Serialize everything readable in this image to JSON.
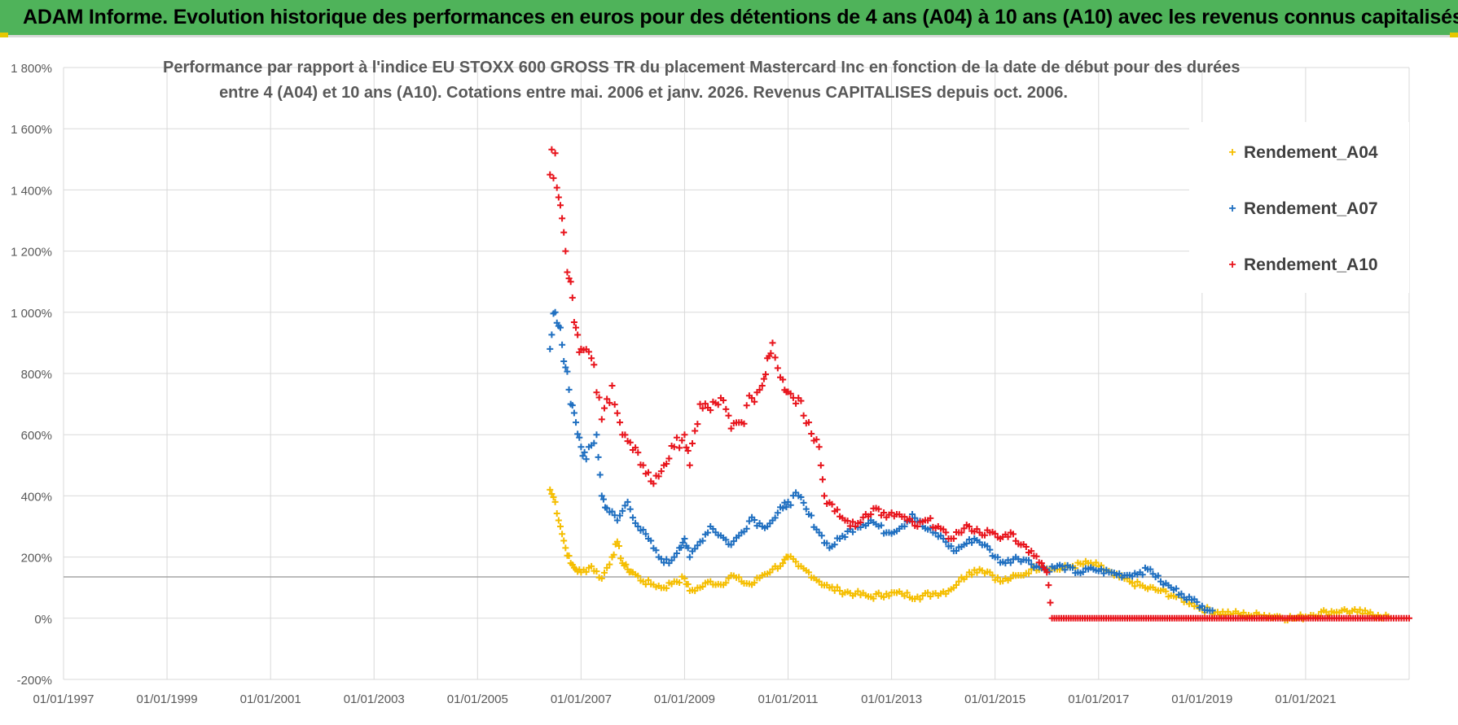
{
  "header": {
    "title": "ADAM Informe. Evolution historique des performances en euros pour des détentions de 4 ans (A04) à 10 ans (A10) avec les revenus connus capitalisés"
  },
  "chart_data": {
    "type": "scatter",
    "title_line1": "Performance par rapport à l'indice EU STOXX 600 GROSS TR  du placement Mastercard Inc en fonction de la date de début pour des durées",
    "title_line2": "entre 4 (A04) et 10 ans (A10).  Cotations entre mai. 2006 et janv. 2026. Revenus CAPITALISES depuis oct. 2006.",
    "xlabel": "",
    "ylabel": "",
    "ylim": [
      -200,
      1800
    ],
    "y_ticks": [
      -200,
      0,
      200,
      400,
      600,
      800,
      1000,
      1200,
      1400,
      1600,
      1800
    ],
    "y_tick_labels": [
      "-200%",
      "0%",
      "200%",
      "400%",
      "600%",
      "800%",
      "1 000%",
      "1 200%",
      "1 400%",
      "1 600%",
      "1 800%"
    ],
    "xlim": [
      1997.0,
      2023.0
    ],
    "x_tick_labels": [
      "01/01/1997",
      "01/01/1999",
      "01/01/2001",
      "01/01/2003",
      "01/01/2005",
      "01/01/2007",
      "01/01/2009",
      "01/01/2011",
      "01/01/2013",
      "01/01/2015",
      "01/01/2017",
      "01/01/2019",
      "01/01/2021"
    ],
    "x_ticks": [
      1997,
      1999,
      2001,
      2003,
      2005,
      2007,
      2009,
      2011,
      2013,
      2015,
      2017,
      2019,
      2021
    ],
    "reference_line": 135,
    "grid": true,
    "legend_position": "top-right",
    "series": [
      {
        "name": "Rendement_A04",
        "color": "#f5be00",
        "points": [
          [
            2006.4,
            420
          ],
          [
            2006.5,
            380
          ],
          [
            2006.6,
            300
          ],
          [
            2006.7,
            230
          ],
          [
            2006.8,
            180
          ],
          [
            2006.9,
            160
          ],
          [
            2007.0,
            150
          ],
          [
            2007.2,
            170
          ],
          [
            2007.4,
            130
          ],
          [
            2007.6,
            200
          ],
          [
            2007.7,
            250
          ],
          [
            2007.8,
            180
          ],
          [
            2007.9,
            160
          ],
          [
            2008.0,
            150
          ],
          [
            2008.2,
            120
          ],
          [
            2008.4,
            110
          ],
          [
            2008.6,
            100
          ],
          [
            2008.8,
            120
          ],
          [
            2009.0,
            130
          ],
          [
            2009.1,
            90
          ],
          [
            2009.3,
            100
          ],
          [
            2009.5,
            120
          ],
          [
            2009.7,
            110
          ],
          [
            2009.9,
            140
          ],
          [
            2010.1,
            120
          ],
          [
            2010.3,
            110
          ],
          [
            2010.5,
            140
          ],
          [
            2010.7,
            160
          ],
          [
            2010.9,
            180
          ],
          [
            2011.0,
            200
          ],
          [
            2011.2,
            170
          ],
          [
            2011.4,
            150
          ],
          [
            2011.6,
            120
          ],
          [
            2011.8,
            100
          ],
          [
            2012.0,
            90
          ],
          [
            2012.3,
            80
          ],
          [
            2012.6,
            70
          ],
          [
            2012.9,
            80
          ],
          [
            2013.2,
            80
          ],
          [
            2013.5,
            70
          ],
          [
            2013.8,
            80
          ],
          [
            2014.1,
            90
          ],
          [
            2014.3,
            120
          ],
          [
            2014.5,
            150
          ],
          [
            2014.7,
            160
          ],
          [
            2014.9,
            150
          ],
          [
            2015.1,
            120
          ],
          [
            2015.3,
            130
          ],
          [
            2015.5,
            140
          ],
          [
            2015.7,
            160
          ],
          [
            2015.9,
            170
          ],
          [
            2016.2,
            160
          ],
          [
            2016.5,
            170
          ],
          [
            2016.8,
            180
          ],
          [
            2017.0,
            170
          ],
          [
            2017.3,
            140
          ],
          [
            2017.6,
            120
          ],
          [
            2017.9,
            100
          ],
          [
            2018.2,
            90
          ],
          [
            2018.5,
            70
          ],
          [
            2018.8,
            50
          ],
          [
            2019.0,
            30
          ],
          [
            2019.3,
            20
          ],
          [
            2019.6,
            15
          ],
          [
            2019.9,
            10
          ],
          [
            2020.2,
            10
          ],
          [
            2020.5,
            5
          ],
          [
            2020.8,
            0
          ],
          [
            2021.1,
            10
          ],
          [
            2021.4,
            20
          ],
          [
            2021.7,
            25
          ],
          [
            2022.0,
            20
          ],
          [
            2022.2,
            15
          ],
          [
            2022.4,
            10
          ],
          [
            2022.6,
            5
          ]
        ]
      },
      {
        "name": "Rendement_A07",
        "color": "#1f6fc0",
        "points": [
          [
            2006.4,
            880
          ],
          [
            2006.5,
            1000
          ],
          [
            2006.6,
            950
          ],
          [
            2006.7,
            820
          ],
          [
            2006.8,
            700
          ],
          [
            2006.9,
            640
          ],
          [
            2007.0,
            560
          ],
          [
            2007.1,
            520
          ],
          [
            2007.3,
            600
          ],
          [
            2007.4,
            400
          ],
          [
            2007.5,
            360
          ],
          [
            2007.7,
            320
          ],
          [
            2007.9,
            380
          ],
          [
            2008.1,
            300
          ],
          [
            2008.3,
            260
          ],
          [
            2008.5,
            200
          ],
          [
            2008.7,
            180
          ],
          [
            2008.9,
            230
          ],
          [
            2009.0,
            260
          ],
          [
            2009.1,
            200
          ],
          [
            2009.3,
            250
          ],
          [
            2009.5,
            300
          ],
          [
            2009.7,
            270
          ],
          [
            2009.9,
            240
          ],
          [
            2010.1,
            280
          ],
          [
            2010.3,
            330
          ],
          [
            2010.5,
            300
          ],
          [
            2010.7,
            320
          ],
          [
            2010.9,
            360
          ],
          [
            2011.0,
            380
          ],
          [
            2011.2,
            400
          ],
          [
            2011.4,
            340
          ],
          [
            2011.6,
            280
          ],
          [
            2011.8,
            230
          ],
          [
            2012.0,
            260
          ],
          [
            2012.3,
            300
          ],
          [
            2012.6,
            320
          ],
          [
            2012.9,
            280
          ],
          [
            2013.2,
            300
          ],
          [
            2013.4,
            340
          ],
          [
            2013.6,
            300
          ],
          [
            2013.8,
            280
          ],
          [
            2014.0,
            260
          ],
          [
            2014.2,
            220
          ],
          [
            2014.4,
            240
          ],
          [
            2014.6,
            260
          ],
          [
            2014.8,
            240
          ],
          [
            2015.0,
            200
          ],
          [
            2015.2,
            180
          ],
          [
            2015.4,
            200
          ],
          [
            2015.6,
            190
          ],
          [
            2015.8,
            170
          ],
          [
            2016.0,
            160
          ],
          [
            2016.3,
            170
          ],
          [
            2016.6,
            150
          ],
          [
            2016.9,
            160
          ],
          [
            2017.2,
            150
          ],
          [
            2017.5,
            140
          ],
          [
            2017.8,
            150
          ],
          [
            2018.0,
            160
          ],
          [
            2018.2,
            120
          ],
          [
            2018.4,
            100
          ],
          [
            2018.6,
            80
          ],
          [
            2018.8,
            60
          ],
          [
            2019.0,
            40
          ],
          [
            2019.2,
            25
          ]
        ]
      },
      {
        "name": "Rendement_A10",
        "color": "#e8141c",
        "points": [
          [
            2006.4,
            1450
          ],
          [
            2006.5,
            1520
          ],
          [
            2006.6,
            1350
          ],
          [
            2006.7,
            1200
          ],
          [
            2006.8,
            1100
          ],
          [
            2006.9,
            950
          ],
          [
            2007.0,
            880
          ],
          [
            2007.2,
            850
          ],
          [
            2007.4,
            650
          ],
          [
            2007.6,
            760
          ],
          [
            2007.8,
            600
          ],
          [
            2008.0,
            550
          ],
          [
            2008.2,
            500
          ],
          [
            2008.4,
            440
          ],
          [
            2008.6,
            500
          ],
          [
            2008.8,
            560
          ],
          [
            2009.0,
            600
          ],
          [
            2009.1,
            500
          ],
          [
            2009.3,
            700
          ],
          [
            2009.5,
            680
          ],
          [
            2009.7,
            720
          ],
          [
            2009.9,
            620
          ],
          [
            2010.1,
            640
          ],
          [
            2010.3,
            720
          ],
          [
            2010.5,
            760
          ],
          [
            2010.6,
            850
          ],
          [
            2010.7,
            900
          ],
          [
            2010.9,
            780
          ],
          [
            2011.0,
            740
          ],
          [
            2011.2,
            720
          ],
          [
            2011.4,
            640
          ],
          [
            2011.6,
            560
          ],
          [
            2011.7,
            400
          ],
          [
            2011.9,
            350
          ],
          [
            2012.1,
            320
          ],
          [
            2012.3,
            300
          ],
          [
            2012.5,
            340
          ],
          [
            2012.7,
            360
          ],
          [
            2012.9,
            330
          ],
          [
            2013.1,
            340
          ],
          [
            2013.3,
            320
          ],
          [
            2013.5,
            300
          ],
          [
            2013.7,
            320
          ],
          [
            2013.9,
            300
          ],
          [
            2014.1,
            260
          ],
          [
            2014.3,
            280
          ],
          [
            2014.5,
            300
          ],
          [
            2014.7,
            280
          ],
          [
            2014.9,
            280
          ],
          [
            2015.1,
            260
          ],
          [
            2015.3,
            280
          ],
          [
            2015.5,
            240
          ],
          [
            2015.7,
            220
          ],
          [
            2015.9,
            180
          ],
          [
            2016.0,
            150
          ],
          [
            2016.1,
            0
          ],
          [
            2016.6,
            0
          ],
          [
            2017.1,
            0
          ],
          [
            2017.6,
            0
          ],
          [
            2018.1,
            0
          ],
          [
            2018.6,
            0
          ],
          [
            2019.1,
            0
          ],
          [
            2019.6,
            0
          ],
          [
            2020.1,
            0
          ],
          [
            2020.6,
            0
          ],
          [
            2021.1,
            0
          ],
          [
            2021.6,
            0
          ],
          [
            2022.1,
            0
          ],
          [
            2022.6,
            0
          ],
          [
            2023.0,
            0
          ]
        ]
      }
    ]
  },
  "legend": {
    "items": [
      {
        "label": "Rendement_A04",
        "marker": "+",
        "color": "#f5be00"
      },
      {
        "label": "Rendement_A07",
        "marker": "+",
        "color": "#1f6fc0"
      },
      {
        "label": "Rendement_A10",
        "marker": "+",
        "color": "#e8141c"
      }
    ]
  }
}
